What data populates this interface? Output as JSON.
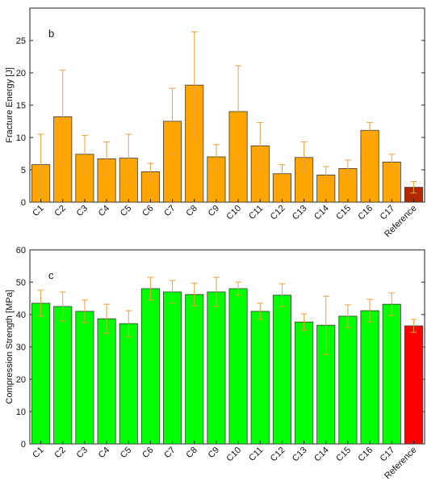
{
  "chart_data": [
    {
      "type": "bar",
      "panel_label": "b",
      "ylabel": "Fracture Energy [J]",
      "ylim": [
        0,
        30
      ],
      "yticks": [
        "0",
        "5",
        "10",
        "15",
        "20",
        "25"
      ],
      "grid": false,
      "categories": [
        "C1",
        "C2",
        "C3",
        "C4",
        "C5",
        "C6",
        "C7",
        "C8",
        "C9",
        "C10",
        "C11",
        "C12",
        "C13",
        "C14",
        "C15",
        "C16",
        "C17",
        "Reference"
      ],
      "values": [
        5.8,
        13.2,
        7.4,
        6.7,
        6.8,
        4.7,
        12.5,
        18.1,
        7.0,
        14.0,
        8.7,
        4.4,
        6.9,
        4.2,
        5.2,
        11.1,
        6.2,
        2.3
      ],
      "error": [
        4.7,
        7.2,
        2.9,
        2.6,
        3.7,
        1.3,
        5.1,
        8.2,
        1.9,
        7.1,
        3.6,
        1.4,
        2.4,
        1.3,
        1.3,
        1.2,
        1.2,
        0.9
      ],
      "colors": {
        "bar": "#FFA500",
        "reference": "#B22800",
        "error": "#E8A040",
        "edge": "#3a3a3a"
      }
    },
    {
      "type": "bar",
      "panel_label": "c",
      "ylabel": "Compression Strength [MPa]",
      "ylim": [
        0,
        60
      ],
      "yticks": [
        "0",
        "10",
        "20",
        "30",
        "40",
        "50",
        "60"
      ],
      "grid": false,
      "categories": [
        "C1",
        "C2",
        "C3",
        "C4",
        "C5",
        "C6",
        "C7",
        "C8",
        "C9",
        "C10",
        "C11",
        "C12",
        "C13",
        "C14",
        "C15",
        "C16",
        "C17",
        "Reference"
      ],
      "values": [
        43.5,
        42.5,
        41.0,
        38.7,
        37.2,
        48.0,
        47.0,
        46.2,
        47.0,
        48.0,
        41.0,
        46.0,
        37.7,
        36.7,
        39.5,
        41.2,
        43.2,
        36.5
      ],
      "error": [
        4.0,
        4.5,
        3.5,
        4.5,
        4.0,
        3.5,
        3.5,
        3.5,
        4.5,
        2.0,
        2.5,
        3.5,
        2.5,
        9.0,
        3.5,
        3.5,
        3.5,
        2.0
      ],
      "colors": {
        "bar": "#00FF00",
        "reference": "#FF0000",
        "error": "#E8A040",
        "edge": "#3a3a3a"
      }
    }
  ]
}
